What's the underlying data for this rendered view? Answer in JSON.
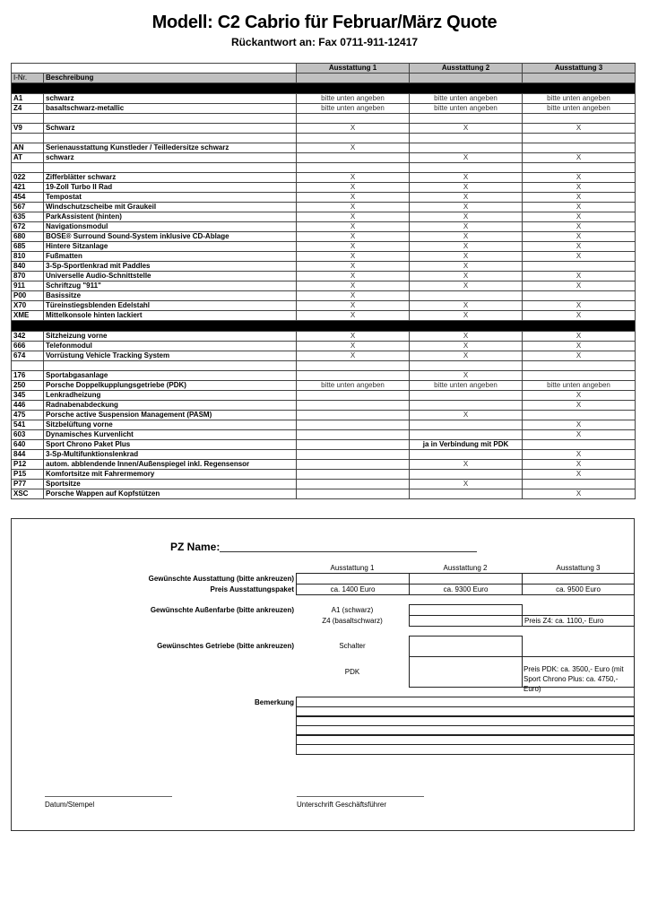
{
  "header": {
    "title": "Modell: C2 Cabrio für Februar/März Quote",
    "subtitle": "Rückantwort an: Fax 0711-911-12417"
  },
  "table": {
    "columns": [
      "Ausstattung 1",
      "Ausstattung 2",
      "Ausstattung 3"
    ],
    "id_header": "I-Nr.",
    "desc_header": "Beschreibung",
    "rows": [
      {
        "type": "black"
      },
      {
        "id": "A1",
        "desc": "schwarz",
        "a": [
          "bitte unten angeben",
          "bitte unten angeben",
          "bitte unten angeben"
        ]
      },
      {
        "id": "Z4",
        "desc": "basaltschwarz-metallic",
        "a": [
          "bitte unten angeben",
          "bitte unten angeben",
          "bitte unten angeben"
        ]
      },
      {
        "type": "blank"
      },
      {
        "id": "V9",
        "desc": "Schwarz",
        "a": [
          "X",
          "X",
          "X"
        ]
      },
      {
        "type": "blank"
      },
      {
        "id": "AN",
        "desc": "Serienausstattung Kunstleder / Teilledersitze schwarz",
        "a": [
          "X",
          "",
          ""
        ]
      },
      {
        "id": "AT",
        "desc": "schwarz",
        "a": [
          "",
          "X",
          "X"
        ]
      },
      {
        "type": "blank"
      },
      {
        "id": "022",
        "desc": "Zifferblätter schwarz",
        "a": [
          "X",
          "X",
          "X"
        ]
      },
      {
        "id": "421",
        "desc": "19-Zoll Turbo II Rad",
        "a": [
          "X",
          "X",
          "X"
        ]
      },
      {
        "id": "454",
        "desc": "Tempostat",
        "a": [
          "X",
          "X",
          "X"
        ]
      },
      {
        "id": "567",
        "desc": "Windschutzscheibe mit Graukeil",
        "a": [
          "X",
          "X",
          "X"
        ]
      },
      {
        "id": "635",
        "desc": "ParkAssistent (hinten)",
        "a": [
          "X",
          "X",
          "X"
        ]
      },
      {
        "id": "672",
        "desc": "Navigationsmodul",
        "a": [
          "X",
          "X",
          "X"
        ]
      },
      {
        "id": "680",
        "desc": "BOSE® Surround Sound-System inklusive CD-Ablage",
        "a": [
          "X",
          "X",
          "X"
        ]
      },
      {
        "id": "685",
        "desc": "Hintere Sitzanlage",
        "a": [
          "X",
          "X",
          "X"
        ]
      },
      {
        "id": "810",
        "desc": "Fußmatten",
        "a": [
          "X",
          "X",
          "X"
        ]
      },
      {
        "id": "840",
        "desc": "3-Sp-Sportlenkrad mit Paddles",
        "a": [
          "X",
          "X",
          ""
        ]
      },
      {
        "id": "870",
        "desc": "Universelle Audio-Schnittstelle",
        "a": [
          "X",
          "X",
          "X"
        ]
      },
      {
        "id": "911",
        "desc": "Schriftzug \"911\"",
        "a": [
          "X",
          "X",
          "X"
        ]
      },
      {
        "id": "P00",
        "desc": "Basissitze",
        "a": [
          "X",
          "",
          ""
        ]
      },
      {
        "id": "X70",
        "desc": "Türeinstiegsblenden Edelstahl",
        "a": [
          "X",
          "X",
          "X"
        ]
      },
      {
        "id": "XME",
        "desc": "Mittelkonsole hinten lackiert",
        "a": [
          "X",
          "X",
          "X"
        ]
      },
      {
        "type": "black"
      },
      {
        "id": "342",
        "desc": "Sitzheizung vorne",
        "a": [
          "X",
          "X",
          "X"
        ]
      },
      {
        "id": "666",
        "desc": "Telefonmodul",
        "a": [
          "X",
          "X",
          "X"
        ]
      },
      {
        "id": "674",
        "desc": "Vorrüstung Vehicle Tracking System",
        "a": [
          "X",
          "X",
          "X"
        ]
      },
      {
        "type": "blank"
      },
      {
        "id": "176",
        "desc": "Sportabgasanlage",
        "a": [
          "",
          "X",
          ""
        ]
      },
      {
        "id": "250",
        "desc": "Porsche Doppelkupplungsgetriebe (PDK)",
        "a": [
          "bitte unten angeben",
          "bitte unten angeben",
          "bitte unten angeben"
        ]
      },
      {
        "id": "345",
        "desc": "Lenkradheizung",
        "a": [
          "",
          "",
          "X"
        ]
      },
      {
        "id": "446",
        "desc": "Radnabenabdeckung",
        "a": [
          "",
          "",
          "X"
        ]
      },
      {
        "id": "475",
        "desc": "Porsche active Suspension Management (PASM)",
        "a": [
          "",
          "X",
          ""
        ]
      },
      {
        "id": "541",
        "desc": "Sitzbelüftung vorne",
        "a": [
          "",
          "",
          "X"
        ]
      },
      {
        "id": "603",
        "desc": "Dynamisches Kurvenlicht",
        "a": [
          "",
          "",
          "X"
        ]
      },
      {
        "id": "640",
        "desc": "Sport Chrono Paket Plus",
        "a": [
          "",
          "ja in Verbindung mit PDK",
          ""
        ],
        "bold_col": 1
      },
      {
        "id": "844",
        "desc": "3-Sp-Multifunktionslenkrad",
        "a": [
          "",
          "",
          "X"
        ]
      },
      {
        "id": "P12",
        "desc": "autom. abblendende Innen/Außenspiegel inkl. Regensensor",
        "a": [
          "",
          "X",
          "X"
        ]
      },
      {
        "id": "P15",
        "desc": "Komfortsitze mit Fahrermemory",
        "a": [
          "",
          "",
          "X"
        ]
      },
      {
        "id": "P77",
        "desc": "Sportsitze",
        "a": [
          "",
          "X",
          ""
        ]
      },
      {
        "id": "XSC",
        "desc": "Porsche Wappen auf Kopfstützen",
        "a": [
          "",
          "",
          "X"
        ]
      }
    ]
  },
  "form": {
    "pz_name_label": "PZ Name:",
    "columns": [
      "Ausstattung 1",
      "Ausstattung 2",
      "Ausstattung 3"
    ],
    "ausstattung_label": "Gewünschte Ausstattung (bitte ankreuzen)",
    "preis_label": "Preis Ausstattungspaket",
    "prices": [
      "ca. 1400 Euro",
      "ca. 9300 Euro",
      "ca. 9500 Euro"
    ],
    "farbe_label": "Gewünschte Außenfarbe (bitte ankreuzen)",
    "farbe_a1": "A1 (schwarz)",
    "farbe_z4": "Z4 (basaltschwarz)",
    "farbe_note": "Preis Z4: ca. 1100,- Euro",
    "getriebe_label": "Gewünschtes Getriebe (bitte ankreuzen)",
    "getriebe_schalter": "Schalter",
    "getriebe_pdk": "PDK",
    "pdk_note_1": "Preis PDK: ca. 3500,- Euro  (mit",
    "pdk_note_2": "Sport Chrono Plus: ca. 4750,- Euro)",
    "bemerkung_label": "Bemerkung",
    "datum_label": "Datum/Stempel",
    "unterschrift_label": "Unterschrift Geschäftsführer"
  }
}
